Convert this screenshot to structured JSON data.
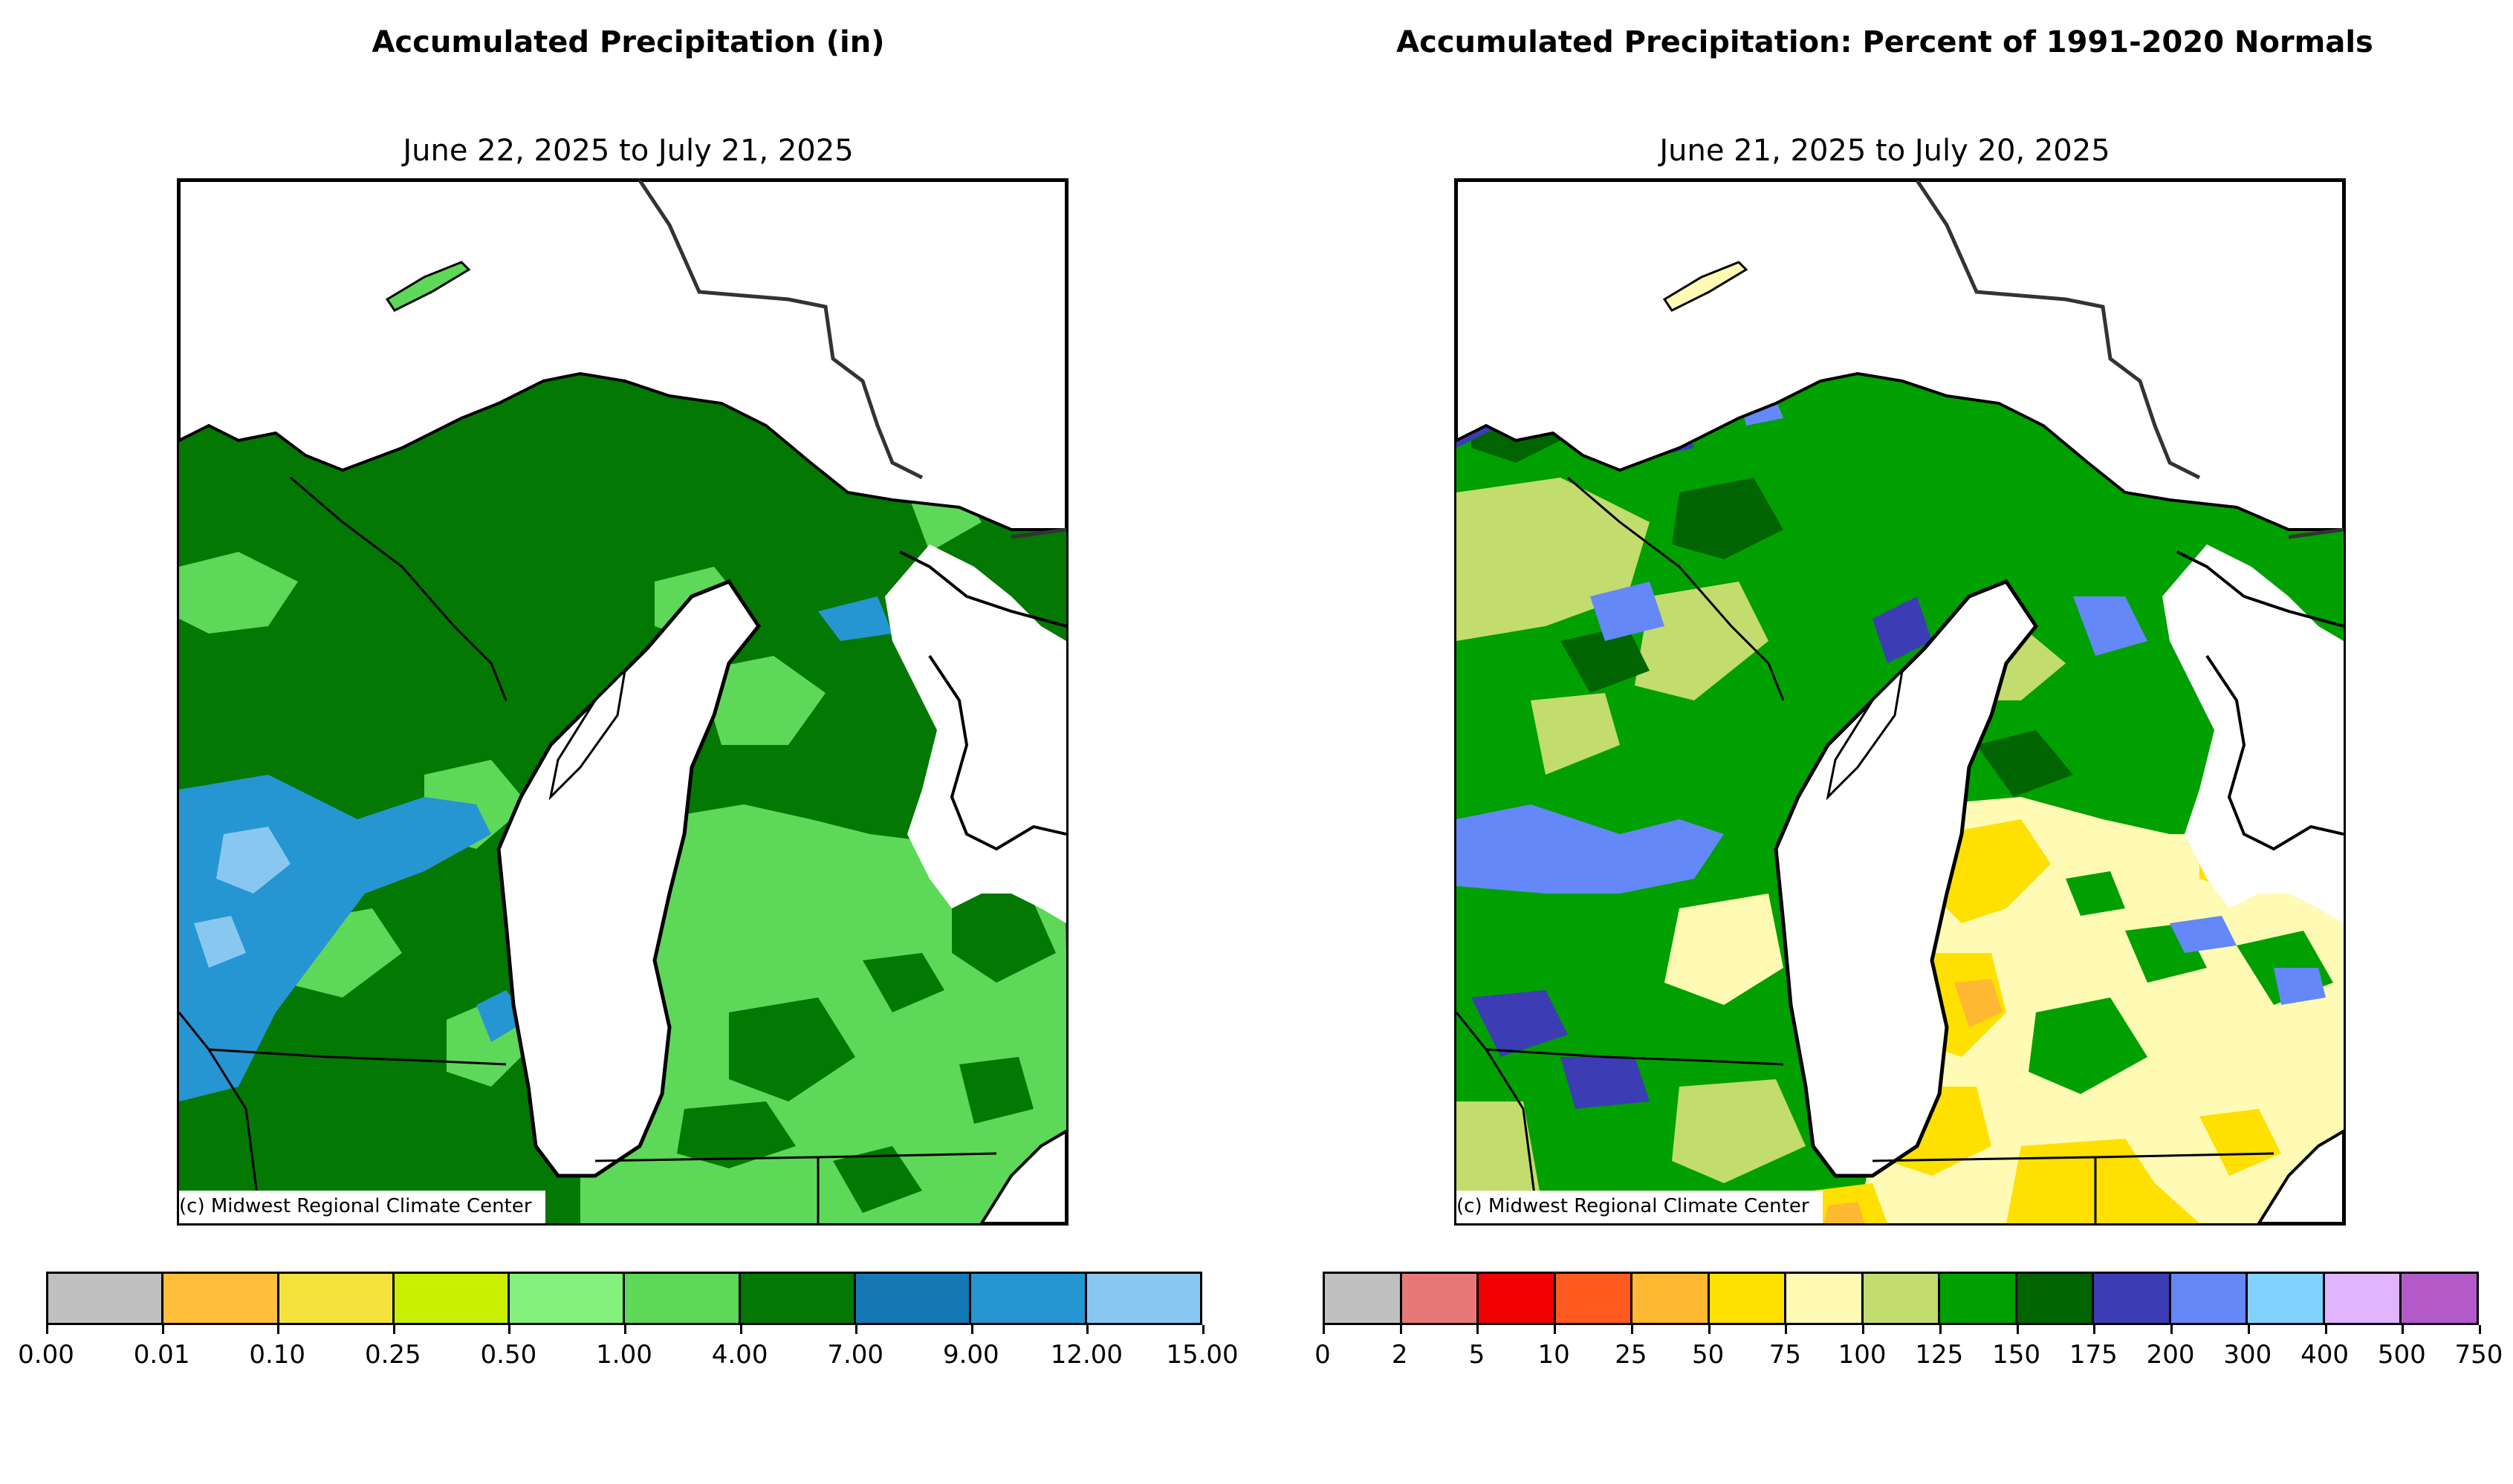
{
  "left_panel": {
    "title": "Accumulated Precipitation (in)",
    "subtitle": "June 22, 2025 to July 21, 2025",
    "credit": "(c) Midwest Regional Climate Center",
    "colorbar": {
      "ticks": [
        "0.00",
        "0.01",
        "0.10",
        "0.25",
        "0.50",
        "1.00",
        "4.00",
        "7.00",
        "9.00",
        "12.00",
        "15.00"
      ],
      "colors": [
        "#c0c0c0",
        "#ffbf3a",
        "#f4e23c",
        "#c8f000",
        "#82f07a",
        "#5ed858",
        "#037803",
        "#1478b4",
        "#2596d2",
        "#88c8f0"
      ]
    }
  },
  "right_panel": {
    "title": "Accumulated Precipitation: Percent of 1991-2020 Normals",
    "subtitle": "June 21, 2025 to July 20, 2025",
    "credit": "(c) Midwest Regional Climate Center",
    "colorbar": {
      "ticks": [
        "0",
        "2",
        "5",
        "10",
        "25",
        "50",
        "75",
        "100",
        "125",
        "150",
        "175",
        "200",
        "300",
        "400",
        "500",
        "750"
      ],
      "colors": [
        "#c0c0c0",
        "#e87878",
        "#f00000",
        "#ff5a20",
        "#ffb832",
        "#ffe000",
        "#fffab4",
        "#c2dc6e",
        "#00a000",
        "#006400",
        "#3c3cb4",
        "#6488f8",
        "#82d2ff",
        "#e0b4ff",
        "#b45ac8"
      ]
    }
  }
}
